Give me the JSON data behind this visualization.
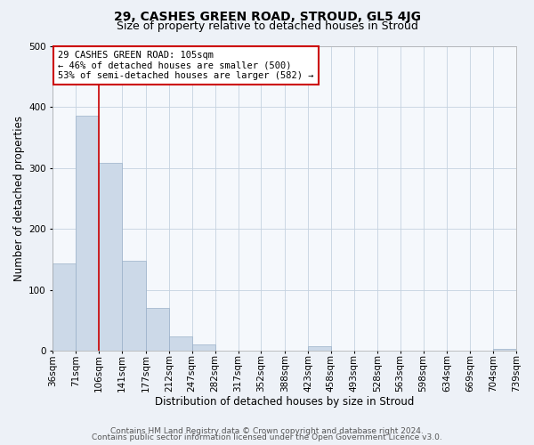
{
  "title": "29, CASHES GREEN ROAD, STROUD, GL5 4JG",
  "subtitle": "Size of property relative to detached houses in Stroud",
  "xlabel": "Distribution of detached houses by size in Stroud",
  "ylabel": "Number of detached properties",
  "bin_edges": [
    36,
    71,
    106,
    141,
    177,
    212,
    247,
    282,
    317,
    352,
    388,
    423,
    458,
    493,
    528,
    563,
    598,
    634,
    669,
    704,
    739
  ],
  "bar_heights": [
    143,
    386,
    308,
    147,
    70,
    24,
    10,
    0,
    0,
    0,
    0,
    7,
    0,
    0,
    0,
    0,
    0,
    0,
    0,
    3
  ],
  "bar_color": "#ccd9e8",
  "bar_edge_color": "#9ab0c8",
  "x_tick_labels": [
    "36sqm",
    "71sqm",
    "106sqm",
    "141sqm",
    "177sqm",
    "212sqm",
    "247sqm",
    "282sqm",
    "317sqm",
    "352sqm",
    "388sqm",
    "423sqm",
    "458sqm",
    "493sqm",
    "528sqm",
    "563sqm",
    "598sqm",
    "634sqm",
    "669sqm",
    "704sqm",
    "739sqm"
  ],
  "ylim": [
    0,
    500
  ],
  "vline_x": 106,
  "vline_color": "#cc0000",
  "annotation_text": "29 CASHES GREEN ROAD: 105sqm\n← 46% of detached houses are smaller (500)\n53% of semi-detached houses are larger (582) →",
  "annotation_box_color": "#ffffff",
  "annotation_box_edgecolor": "#cc0000",
  "footer_line1": "Contains HM Land Registry data © Crown copyright and database right 2024.",
  "footer_line2": "Contains public sector information licensed under the Open Government Licence v3.0.",
  "bg_color": "#edf1f7",
  "plot_bg_color": "#f5f8fc",
  "grid_color": "#c5d2e0",
  "title_fontsize": 10,
  "subtitle_fontsize": 9,
  "xlabel_fontsize": 8.5,
  "ylabel_fontsize": 8.5,
  "tick_fontsize": 7.5,
  "footer_fontsize": 6.5,
  "annot_fontsize": 7.5
}
